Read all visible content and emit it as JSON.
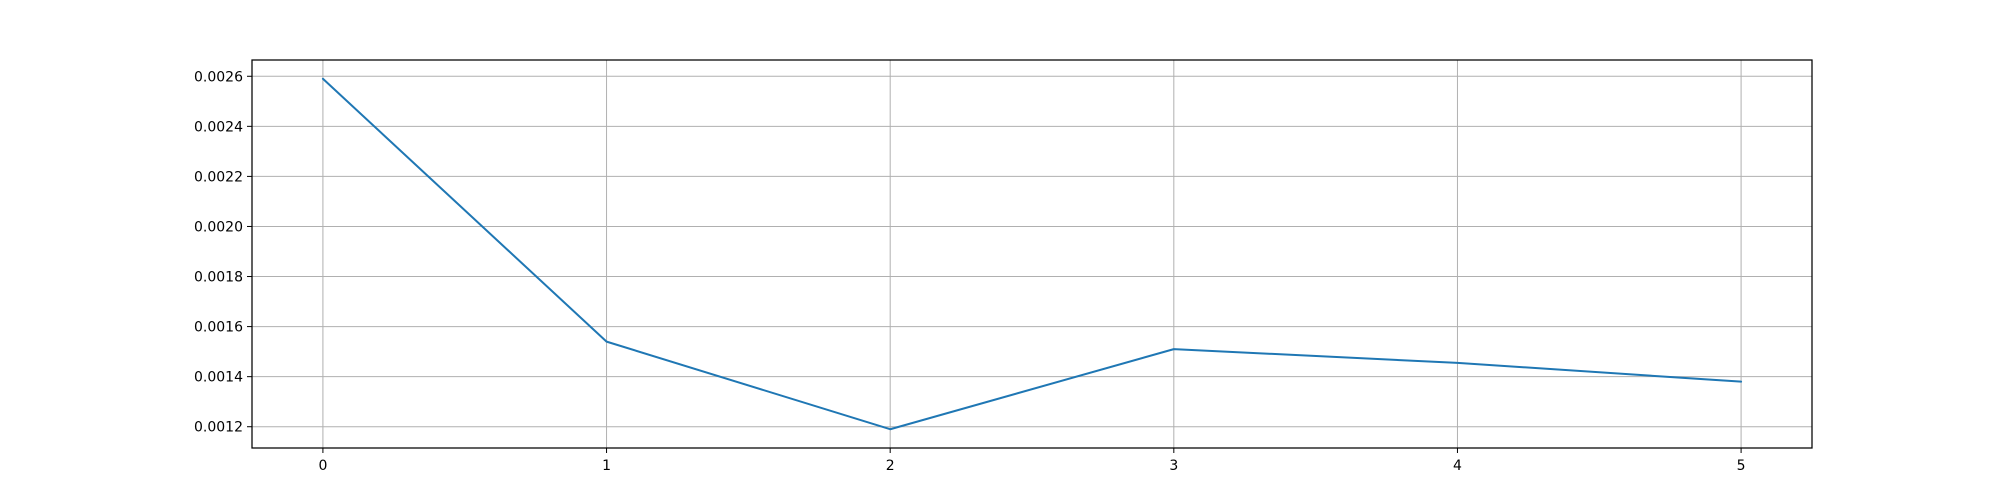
{
  "chart_data": {
    "type": "line",
    "title": "",
    "xlabel": "",
    "ylabel": "",
    "x": [
      0,
      1,
      2,
      3,
      4,
      5
    ],
    "series": [
      {
        "values": [
          0.00259,
          0.00154,
          0.00119,
          0.00151,
          0.001455,
          0.00138
        ],
        "color": "#1f77b4"
      }
    ],
    "xlim": [
      -0.25,
      5.25
    ],
    "ylim": [
      0.001115,
      0.002665
    ],
    "x_ticks": [
      0,
      1,
      2,
      3,
      4,
      5
    ],
    "x_tick_labels": [
      "0",
      "1",
      "2",
      "3",
      "4",
      "5"
    ],
    "y_ticks": [
      0.0012,
      0.0014,
      0.0016,
      0.0018,
      0.002,
      0.0022,
      0.0024,
      0.0026
    ],
    "y_tick_labels": [
      "0.0012",
      "0.0014",
      "0.0016",
      "0.0018",
      "0.0020",
      "0.0022",
      "0.0024",
      "0.0026"
    ],
    "grid": true,
    "legend": "none",
    "colors": {
      "grid": "#b0b0b0",
      "axes": "#000000",
      "background": "#ffffff"
    }
  }
}
